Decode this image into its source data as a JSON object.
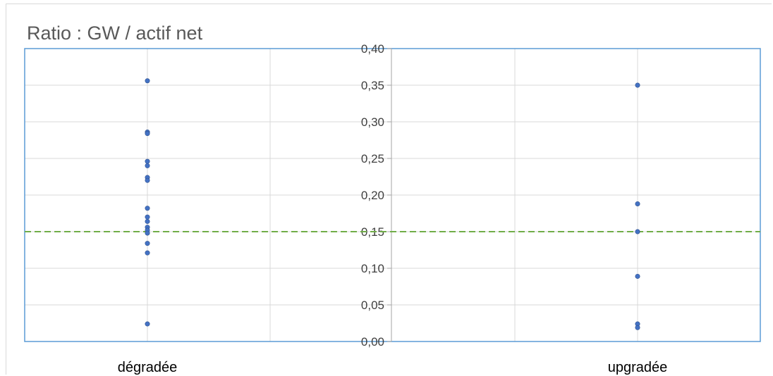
{
  "chart_data": {
    "type": "scatter",
    "title": "Ratio : GW / actif net",
    "categories": [
      "dégradée",
      "upgradée"
    ],
    "ylim": [
      0,
      0.4
    ],
    "y_ticks": [
      0.0,
      0.05,
      0.1,
      0.15,
      0.2,
      0.25,
      0.3,
      0.35,
      0.4
    ],
    "y_tick_labels": [
      "0,00",
      "0,05",
      "0,10",
      "0,15",
      "0,20",
      "0,25",
      "0,30",
      "0,35",
      "0,40"
    ],
    "series": [
      {
        "category": "dégradée",
        "values": [
          0.356,
          0.286,
          0.284,
          0.246,
          0.24,
          0.224,
          0.22,
          0.182,
          0.17,
          0.164,
          0.156,
          0.152,
          0.148,
          0.134,
          0.121,
          0.024
        ]
      },
      {
        "category": "upgradée",
        "values": [
          0.35,
          0.188,
          0.15,
          0.089,
          0.024,
          0.019
        ]
      }
    ],
    "reference_line": {
      "value": 0.15,
      "style": "dashed",
      "color": "#70ad47"
    },
    "point_color": "#4472c4",
    "gridlines": true
  }
}
